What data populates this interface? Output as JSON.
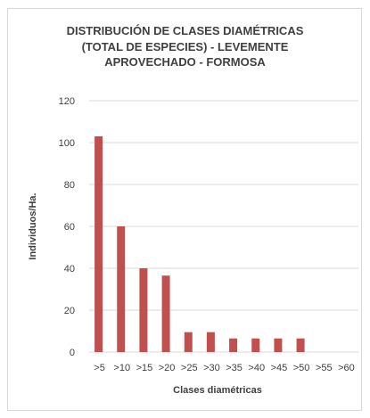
{
  "chart_data": {
    "type": "bar",
    "title_lines": [
      "DISTRIBUCIÓN DE CLASES DIAMÉTRICAS",
      "(TOTAL DE ESPECIES) - LEVEMENTE",
      "APROVECHADO - FORMOSA"
    ],
    "xlabel": "Clases diamétricas",
    "ylabel": "Individuos/Ha.",
    "categories": [
      ">5",
      ">10",
      ">15",
      ">20",
      ">25",
      ">30",
      ">35",
      ">40",
      ">45",
      ">50",
      ">55",
      ">60"
    ],
    "values": [
      103,
      60,
      40,
      36.5,
      9.5,
      9.5,
      6.5,
      6.5,
      6.5,
      6.5,
      0,
      0
    ],
    "ylim": [
      0,
      120
    ],
    "yticks": [
      0,
      20,
      40,
      60,
      80,
      100,
      120
    ],
    "grid": true,
    "bar_color": "#c0504d",
    "grid_color": "#d9d9d9",
    "legend": "none"
  }
}
